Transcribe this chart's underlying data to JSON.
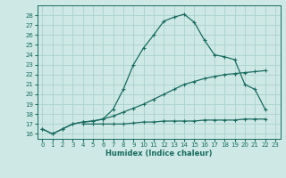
{
  "xlabel": "Humidex (Indice chaleur)",
  "bg_color": "#cde8e5",
  "grid_color": "#b0d5d0",
  "line_color": "#1a6b60",
  "xlim": [
    -0.5,
    23.5
  ],
  "ylim": [
    15.5,
    29.0
  ],
  "yticks": [
    16,
    17,
    18,
    19,
    20,
    21,
    22,
    23,
    24,
    25,
    26,
    27,
    28
  ],
  "xticks": [
    0,
    1,
    2,
    3,
    4,
    5,
    6,
    7,
    8,
    9,
    10,
    11,
    12,
    13,
    14,
    15,
    16,
    17,
    18,
    19,
    20,
    21,
    22,
    23
  ],
  "line1_x": [
    0,
    1,
    2,
    3,
    4,
    5,
    6,
    7,
    8,
    9,
    10,
    11,
    12,
    13,
    14,
    15,
    16,
    17,
    18,
    19,
    20,
    21,
    22
  ],
  "line1_y": [
    16.5,
    16.0,
    16.5,
    17.0,
    17.2,
    17.3,
    17.5,
    18.5,
    20.5,
    23.0,
    24.7,
    26.0,
    27.4,
    27.8,
    28.1,
    27.3,
    25.5,
    24.0,
    23.8,
    23.5,
    21.0,
    20.5,
    18.5
  ],
  "line2_x": [
    0,
    1,
    2,
    3,
    4,
    5,
    6,
    7,
    8,
    9,
    10,
    11,
    12,
    13,
    14,
    15,
    16,
    17,
    18,
    19,
    20,
    21,
    22
  ],
  "line2_y": [
    16.5,
    16.0,
    16.5,
    17.0,
    17.2,
    17.3,
    17.5,
    17.8,
    18.2,
    18.6,
    19.0,
    19.5,
    20.0,
    20.5,
    21.0,
    21.3,
    21.6,
    21.8,
    22.0,
    22.1,
    22.2,
    22.3,
    22.4
  ],
  "line3_x": [
    4,
    5,
    6,
    7,
    8,
    9,
    10,
    11,
    12,
    13,
    14,
    15,
    16,
    17,
    18,
    19,
    20,
    21,
    22
  ],
  "line3_y": [
    17.0,
    17.0,
    17.0,
    17.0,
    17.0,
    17.1,
    17.2,
    17.2,
    17.3,
    17.3,
    17.3,
    17.3,
    17.4,
    17.4,
    17.4,
    17.4,
    17.5,
    17.5,
    17.5
  ]
}
